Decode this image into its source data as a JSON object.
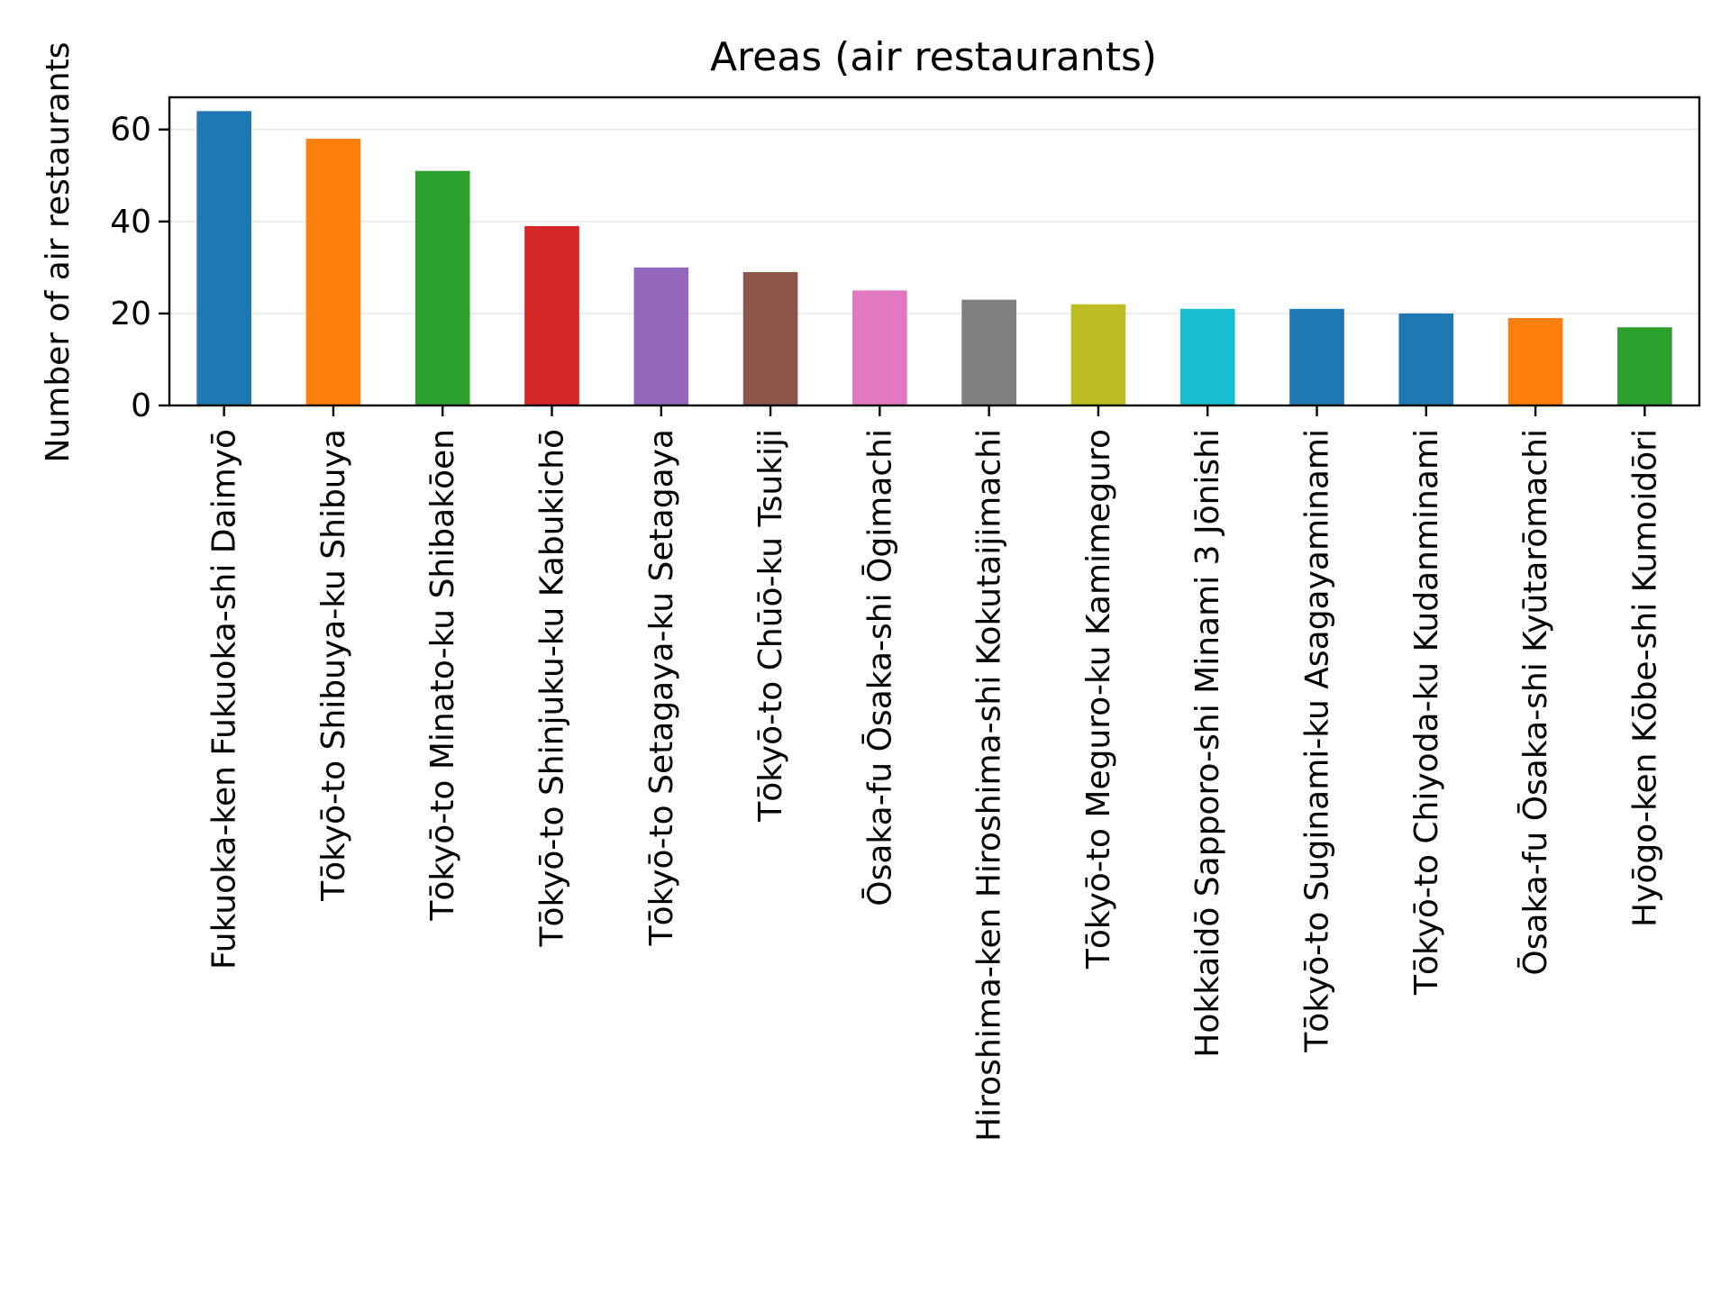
{
  "chart_data": {
    "type": "bar",
    "title": "Areas (air restaurants)",
    "xlabel": "",
    "ylabel": "Number of air restaurants",
    "ylim": [
      0,
      67
    ],
    "yticks": [
      0,
      20,
      40,
      60
    ],
    "grid": "horizontal, light",
    "legend": "none",
    "categories": [
      "Fukuoka-ken Fukuoka-shi Daimyō",
      "Tōkyō-to Shibuya-ku Shibuya",
      "Tōkyō-to Minato-ku Shibakōen",
      "Tōkyō-to Shinjuku-ku Kabukichō",
      "Tōkyō-to Setagaya-ku Setagaya",
      "Tōkyō-to Chūō-ku Tsukiji",
      "Ōsaka-fu Ōsaka-shi Ōgimachi",
      "Hiroshima-ken Hiroshima-shi Kokutaijimachi",
      "Tōkyō-to Meguro-ku Kamimeguro",
      "Hokkaidō Sapporo-shi Minami 3 Jōnishi",
      "Tōkyō-to Suginami-ku Asagayaminami",
      "Tōkyō-to Chiyoda-ku Kudanminami",
      "Ōsaka-fu Ōsaka-shi Kyūtarōmachi",
      "Hyōgo-ken Kōbe-shi Kumoidōri"
    ],
    "values": [
      64,
      58,
      51,
      39,
      30,
      29,
      25,
      23,
      22,
      21,
      21,
      20,
      19,
      17
    ],
    "colors": [
      "#1f77b4",
      "#ff7f0e",
      "#2ca02c",
      "#d62728",
      "#9467bd",
      "#8c564b",
      "#e377c2",
      "#7f7f7f",
      "#bcbd22",
      "#17becf",
      "#1f77b4",
      "#1f77b4",
      "#ff7f0e",
      "#2ca02c"
    ]
  }
}
